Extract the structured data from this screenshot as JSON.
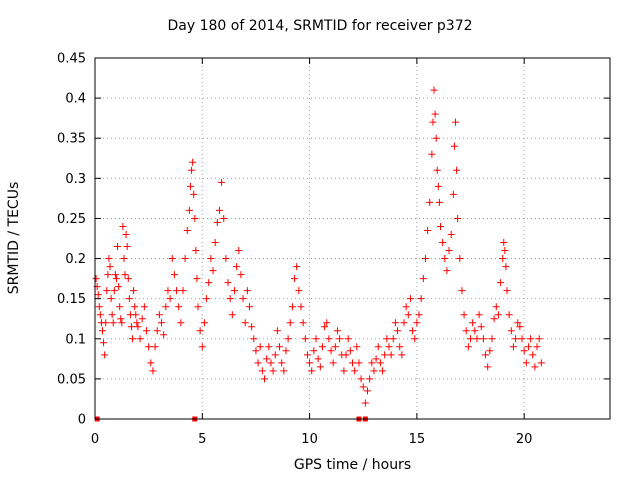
{
  "chart_data": {
    "type": "scatter",
    "title": "Day 180 of 2014, SRMTID for receiver p372",
    "xlabel": "GPS time / hours",
    "ylabel": "SRMTID / TECUs",
    "xlim": [
      0,
      24
    ],
    "ylim": [
      0,
      0.45
    ],
    "xticks": [
      0,
      5,
      10,
      15,
      20
    ],
    "xtick_labels": [
      "0",
      "5",
      "10",
      "15",
      "20"
    ],
    "yticks": [
      0,
      0.05,
      0.1,
      0.15,
      0.2,
      0.25,
      0.3,
      0.35,
      0.4,
      0.45
    ],
    "ytick_labels": [
      "0",
      "0.05",
      "0.1",
      "0.15",
      "0.2",
      "0.25",
      "0.3",
      "0.35",
      "0.4",
      "0.45"
    ],
    "grid": true,
    "marker": "+",
    "series": [
      {
        "name": "SRMTID",
        "color": "#ff0000",
        "points": [
          [
            0.05,
            0.175
          ],
          [
            0.1,
            0.165
          ],
          [
            0.15,
            0.155
          ],
          [
            0.2,
            0.14
          ],
          [
            0.25,
            0.13
          ],
          [
            0.3,
            0.12
          ],
          [
            0.35,
            0.11
          ],
          [
            0.4,
            0.095
          ],
          [
            0.45,
            0.08
          ],
          [
            0.5,
            0.12
          ],
          [
            0.55,
            0.16
          ],
          [
            0.6,
            0.18
          ],
          [
            0.65,
            0.2
          ],
          [
            0.7,
            0.19
          ],
          [
            0.75,
            0.15
          ],
          [
            0.8,
            0.13
          ],
          [
            0.85,
            0.12
          ],
          [
            0.9,
            0.16
          ],
          [
            0.95,
            0.18
          ],
          [
            1.0,
            0.175
          ],
          [
            1.05,
            0.215
          ],
          [
            1.1,
            0.165
          ],
          [
            1.15,
            0.14
          ],
          [
            1.2,
            0.125
          ],
          [
            1.25,
            0.12
          ],
          [
            1.3,
            0.24
          ],
          [
            1.35,
            0.2
          ],
          [
            1.4,
            0.18
          ],
          [
            1.45,
            0.23
          ],
          [
            1.5,
            0.215
          ],
          [
            1.55,
            0.175
          ],
          [
            1.6,
            0.15
          ],
          [
            1.65,
            0.13
          ],
          [
            1.7,
            0.115
          ],
          [
            1.75,
            0.1
          ],
          [
            1.8,
            0.16
          ],
          [
            1.85,
            0.14
          ],
          [
            1.9,
            0.13
          ],
          [
            1.95,
            0.12
          ],
          [
            2.0,
            0.115
          ],
          [
            2.1,
            0.1
          ],
          [
            2.2,
            0.125
          ],
          [
            2.3,
            0.14
          ],
          [
            2.4,
            0.11
          ],
          [
            2.5,
            0.09
          ],
          [
            2.6,
            0.07
          ],
          [
            2.7,
            0.06
          ],
          [
            2.8,
            0.09
          ],
          [
            2.9,
            0.11
          ],
          [
            3.0,
            0.13
          ],
          [
            3.1,
            0.12
          ],
          [
            3.2,
            0.105
          ],
          [
            3.3,
            0.14
          ],
          [
            3.4,
            0.16
          ],
          [
            3.5,
            0.15
          ],
          [
            3.6,
            0.2
          ],
          [
            3.7,
            0.18
          ],
          [
            3.8,
            0.16
          ],
          [
            3.9,
            0.14
          ],
          [
            4.0,
            0.12
          ],
          [
            4.1,
            0.16
          ],
          [
            4.2,
            0.2
          ],
          [
            4.3,
            0.235
          ],
          [
            4.4,
            0.26
          ],
          [
            4.45,
            0.29
          ],
          [
            4.5,
            0.31
          ],
          [
            4.55,
            0.32
          ],
          [
            4.6,
            0.28
          ],
          [
            4.65,
            0.25
          ],
          [
            4.7,
            0.21
          ],
          [
            4.75,
            0.175
          ],
          [
            4.8,
            0.14
          ],
          [
            4.9,
            0.11
          ],
          [
            5.0,
            0.09
          ],
          [
            5.1,
            0.12
          ],
          [
            5.2,
            0.15
          ],
          [
            5.3,
            0.17
          ],
          [
            5.4,
            0.2
          ],
          [
            5.5,
            0.185
          ],
          [
            5.6,
            0.22
          ],
          [
            5.7,
            0.245
          ],
          [
            5.8,
            0.26
          ],
          [
            5.9,
            0.295
          ],
          [
            6.0,
            0.25
          ],
          [
            6.1,
            0.2
          ],
          [
            6.2,
            0.17
          ],
          [
            6.3,
            0.15
          ],
          [
            6.4,
            0.13
          ],
          [
            6.5,
            0.16
          ],
          [
            6.6,
            0.19
          ],
          [
            6.7,
            0.21
          ],
          [
            6.8,
            0.18
          ],
          [
            6.9,
            0.15
          ],
          [
            7.0,
            0.12
          ],
          [
            7.1,
            0.16
          ],
          [
            7.2,
            0.14
          ],
          [
            7.3,
            0.115
          ],
          [
            7.4,
            0.1
          ],
          [
            7.5,
            0.085
          ],
          [
            7.6,
            0.07
          ],
          [
            7.7,
            0.09
          ],
          [
            7.8,
            0.06
          ],
          [
            7.9,
            0.05
          ],
          [
            8.0,
            0.075
          ],
          [
            8.1,
            0.09
          ],
          [
            8.2,
            0.07
          ],
          [
            8.3,
            0.06
          ],
          [
            8.4,
            0.08
          ],
          [
            8.5,
            0.11
          ],
          [
            8.6,
            0.09
          ],
          [
            8.7,
            0.07
          ],
          [
            8.8,
            0.06
          ],
          [
            8.9,
            0.085
          ],
          [
            9.0,
            0.1
          ],
          [
            9.1,
            0.12
          ],
          [
            9.2,
            0.14
          ],
          [
            9.3,
            0.175
          ],
          [
            9.4,
            0.19
          ],
          [
            9.5,
            0.16
          ],
          [
            9.6,
            0.14
          ],
          [
            9.7,
            0.12
          ],
          [
            9.8,
            0.1
          ],
          [
            9.9,
            0.08
          ],
          [
            10.0,
            0.07
          ],
          [
            10.1,
            0.06
          ],
          [
            10.2,
            0.085
          ],
          [
            10.3,
            0.1
          ],
          [
            10.4,
            0.075
          ],
          [
            10.5,
            0.065
          ],
          [
            10.6,
            0.09
          ],
          [
            10.7,
            0.115
          ],
          [
            10.8,
            0.12
          ],
          [
            10.9,
            0.1
          ],
          [
            11.0,
            0.085
          ],
          [
            11.1,
            0.07
          ],
          [
            11.2,
            0.09
          ],
          [
            11.3,
            0.11
          ],
          [
            11.4,
            0.1
          ],
          [
            11.5,
            0.08
          ],
          [
            11.6,
            0.06
          ],
          [
            11.7,
            0.08
          ],
          [
            11.8,
            0.1
          ],
          [
            11.9,
            0.085
          ],
          [
            12.0,
            0.07
          ],
          [
            12.1,
            0.06
          ],
          [
            12.2,
            0.09
          ],
          [
            12.3,
            0.07
          ],
          [
            12.4,
            0.05
          ],
          [
            12.5,
            0.04
          ],
          [
            12.6,
            0.02
          ],
          [
            12.7,
            0.035
          ],
          [
            12.8,
            0.05
          ],
          [
            12.9,
            0.07
          ],
          [
            13.0,
            0.06
          ],
          [
            13.1,
            0.075
          ],
          [
            13.2,
            0.09
          ],
          [
            13.3,
            0.07
          ],
          [
            13.4,
            0.06
          ],
          [
            13.5,
            0.08
          ],
          [
            13.6,
            0.1
          ],
          [
            13.7,
            0.09
          ],
          [
            13.8,
            0.08
          ],
          [
            13.9,
            0.1
          ],
          [
            14.0,
            0.12
          ],
          [
            14.1,
            0.11
          ],
          [
            14.2,
            0.09
          ],
          [
            14.3,
            0.08
          ],
          [
            14.4,
            0.12
          ],
          [
            14.5,
            0.14
          ],
          [
            14.6,
            0.13
          ],
          [
            14.7,
            0.15
          ],
          [
            14.8,
            0.11
          ],
          [
            14.9,
            0.1
          ],
          [
            15.0,
            0.12
          ],
          [
            15.1,
            0.13
          ],
          [
            15.2,
            0.15
          ],
          [
            15.3,
            0.175
          ],
          [
            15.4,
            0.2
          ],
          [
            15.5,
            0.235
          ],
          [
            15.6,
            0.27
          ],
          [
            15.7,
            0.33
          ],
          [
            15.75,
            0.37
          ],
          [
            15.8,
            0.41
          ],
          [
            15.85,
            0.38
          ],
          [
            15.9,
            0.35
          ],
          [
            15.95,
            0.31
          ],
          [
            16.0,
            0.29
          ],
          [
            16.05,
            0.27
          ],
          [
            16.1,
            0.24
          ],
          [
            16.2,
            0.22
          ],
          [
            16.3,
            0.2
          ],
          [
            16.4,
            0.185
          ],
          [
            16.5,
            0.21
          ],
          [
            16.6,
            0.23
          ],
          [
            16.7,
            0.28
          ],
          [
            16.75,
            0.34
          ],
          [
            16.8,
            0.37
          ],
          [
            16.85,
            0.31
          ],
          [
            16.9,
            0.25
          ],
          [
            17.0,
            0.2
          ],
          [
            17.1,
            0.16
          ],
          [
            17.2,
            0.13
          ],
          [
            17.3,
            0.11
          ],
          [
            17.4,
            0.09
          ],
          [
            17.5,
            0.1
          ],
          [
            17.6,
            0.12
          ],
          [
            17.7,
            0.11
          ],
          [
            17.8,
            0.1
          ],
          [
            17.9,
            0.13
          ],
          [
            18.0,
            0.115
          ],
          [
            18.1,
            0.1
          ],
          [
            18.2,
            0.08
          ],
          [
            18.3,
            0.065
          ],
          [
            18.4,
            0.085
          ],
          [
            18.5,
            0.1
          ],
          [
            18.6,
            0.125
          ],
          [
            18.7,
            0.14
          ],
          [
            18.8,
            0.13
          ],
          [
            18.9,
            0.17
          ],
          [
            19.0,
            0.2
          ],
          [
            19.05,
            0.22
          ],
          [
            19.1,
            0.21
          ],
          [
            19.15,
            0.19
          ],
          [
            19.2,
            0.16
          ],
          [
            19.3,
            0.13
          ],
          [
            19.4,
            0.11
          ],
          [
            19.5,
            0.09
          ],
          [
            19.6,
            0.1
          ],
          [
            19.7,
            0.12
          ],
          [
            19.8,
            0.115
          ],
          [
            19.9,
            0.1
          ],
          [
            20.0,
            0.085
          ],
          [
            20.1,
            0.07
          ],
          [
            20.2,
            0.09
          ],
          [
            20.3,
            0.1
          ],
          [
            20.4,
            0.08
          ],
          [
            20.5,
            0.065
          ],
          [
            20.6,
            0.09
          ],
          [
            20.7,
            0.1
          ],
          [
            20.8,
            0.07
          ]
        ]
      }
    ],
    "zero_markers": [
      0.1,
      4.65,
      12.3,
      12.6
    ]
  }
}
